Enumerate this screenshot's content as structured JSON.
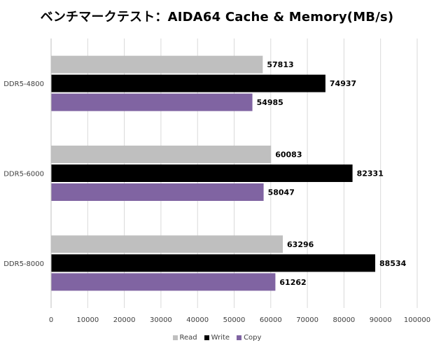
{
  "chart_data": {
    "type": "bar",
    "orientation": "horizontal",
    "title": "ベンチマークテスト：AIDA64 Cache & Memory(MB/s)",
    "categories": [
      "DDR5-4800",
      "DDR5-6000",
      "DDR5-8000"
    ],
    "series": [
      {
        "name": "Read",
        "color": "#bfbfbf",
        "values": [
          57813,
          60083,
          63296
        ]
      },
      {
        "name": "Write",
        "color": "#000000",
        "values": [
          74937,
          82331,
          88534
        ]
      },
      {
        "name": "Copy",
        "color": "#8064a2",
        "values": [
          54985,
          58047,
          61262
        ]
      }
    ],
    "xlim": [
      0,
      100000
    ],
    "xticks": [
      0,
      10000,
      20000,
      30000,
      40000,
      50000,
      60000,
      70000,
      80000,
      90000,
      100000
    ],
    "grid": true,
    "data_labels": true,
    "legend": "bottom"
  }
}
